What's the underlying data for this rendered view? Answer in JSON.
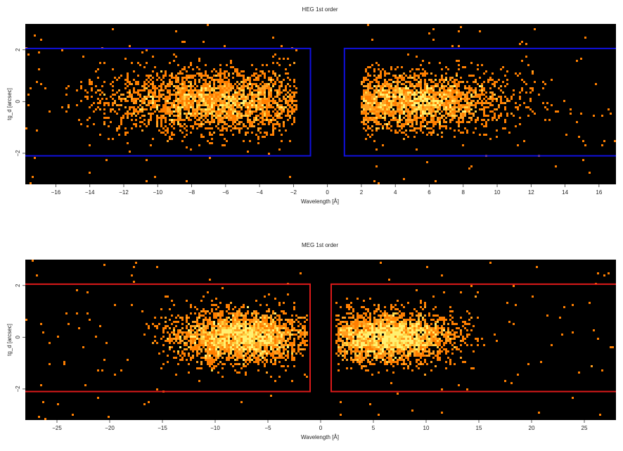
{
  "colors": {
    "background": "#000000",
    "heg_region": "#1010dd",
    "meg_region": "#dd1a1a",
    "events": [
      "#ff7f00",
      "#ffa020",
      "#ffd040",
      "#fff070"
    ]
  },
  "chart_data": [
    {
      "type": "heatmap",
      "title": "HEG 1st order",
      "xlabel": "Wavelength [Å]",
      "ylabel": "tg_d [arcsec]",
      "xlim": [
        -17.8,
        17.0
      ],
      "ylim": [
        -3.2,
        3.0
      ],
      "x_ticks": [
        -16,
        -14,
        -12,
        -10,
        -8,
        -6,
        -4,
        -2,
        0,
        2,
        4,
        6,
        8,
        10,
        12,
        14,
        16
      ],
      "y_ticks": [
        -2,
        0,
        2
      ],
      "regions": [
        {
          "x": [
            -17.8,
            -1.0
          ],
          "y": [
            -2.1,
            2.05
          ]
        },
        {
          "x": [
            1.0,
            17.0
          ],
          "y": [
            -2.1,
            2.05
          ]
        }
      ],
      "event_clusters": [
        {
          "x_center": -6.5,
          "x_sigma": 3.3,
          "x_min": -17.8,
          "x_max": -1.8,
          "y_sigma": 0.6
        },
        {
          "x_center": 4.8,
          "x_sigma": 2.9,
          "x_min": 2.0,
          "x_max": 17.0,
          "y_sigma": 0.55
        }
      ]
    },
    {
      "type": "heatmap",
      "title": "MEG 1st order",
      "xlabel": "Wavelength [Å]",
      "ylabel": "tg_d [arcsec]",
      "xlim": [
        -28,
        28
      ],
      "ylim": [
        -3.2,
        3.0
      ],
      "x_ticks": [
        -25,
        -20,
        -15,
        -10,
        -5,
        0,
        5,
        10,
        15,
        20,
        25
      ],
      "y_ticks": [
        -2,
        0,
        2
      ],
      "regions": [
        {
          "x": [
            -28,
            -1.0
          ],
          "y": [
            -2.1,
            2.05
          ]
        },
        {
          "x": [
            1.0,
            28
          ],
          "y": [
            -2.1,
            2.05
          ]
        }
      ],
      "event_clusters": [
        {
          "x_center": -7.5,
          "x_sigma": 3.2,
          "x_min": -28,
          "x_max": -1.2,
          "y_sigma": 0.5
        },
        {
          "x_center": 6.5,
          "x_sigma": 3.0,
          "x_min": 1.5,
          "x_max": 28,
          "y_sigma": 0.48
        }
      ]
    }
  ]
}
